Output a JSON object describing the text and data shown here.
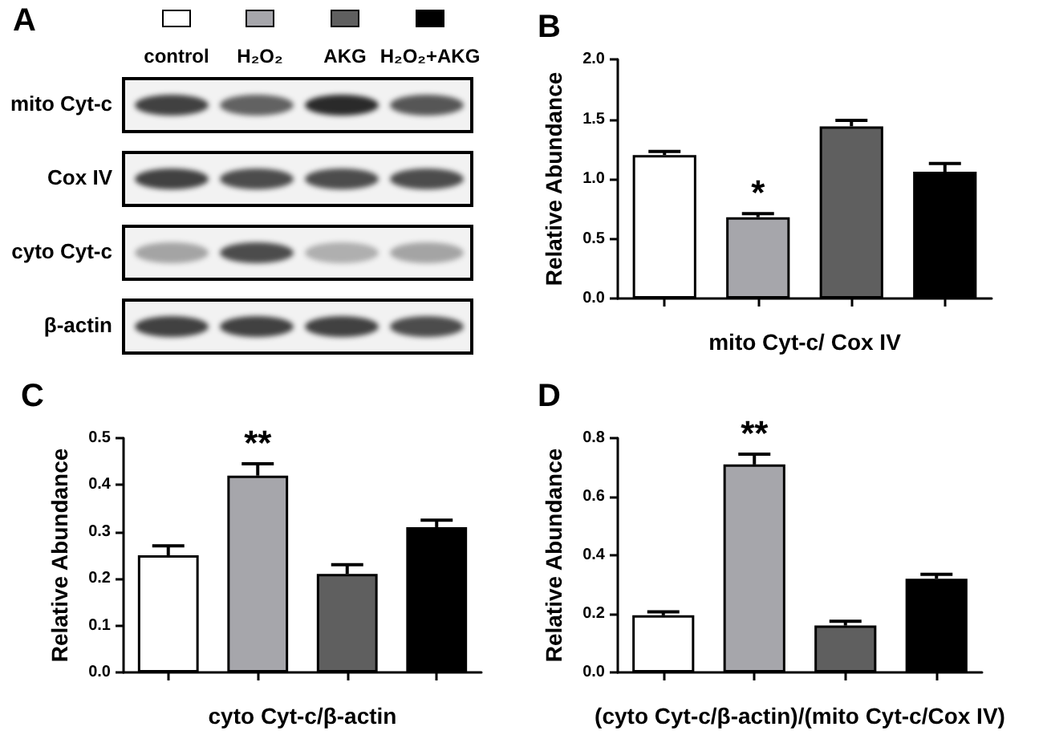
{
  "chart_data": [
    {
      "type": "other",
      "title": "A",
      "annotations": [
        "control",
        "H₂O₂",
        "AKG",
        "H₂O₂+AKG",
        "mito Cyt-c",
        "Cox IV",
        "cyto Cyt-c",
        "β-actin"
      ]
    },
    {
      "type": "bar",
      "title": "B",
      "categories": [
        null,
        null,
        null,
        null
      ],
      "values": [
        1.2,
        0.68,
        1.44,
        1.06
      ],
      "errors": [
        [
          1.2,
          1.23
        ],
        [
          0.68,
          0.71
        ],
        [
          1.44,
          1.49
        ],
        [
          1.06,
          1.13
        ]
      ],
      "value_labels": [
        null,
        "*",
        null,
        null
      ],
      "colors": [
        "#ffffff",
        "#a6a6ab",
        "#5f5f5f",
        "#000000"
      ],
      "ylim": [
        0,
        2
      ],
      "yticks": [
        {
          "value": 0,
          "label": "0.0"
        },
        {
          "value": 0.5,
          "label": "0.5"
        },
        {
          "value": 1,
          "label": "1.0"
        },
        {
          "value": 1.5,
          "label": "1.5"
        },
        {
          "value": 2,
          "label": "2.0"
        }
      ],
      "ylabel": "Relative Abundance",
      "xlabel": "mito Cyt-c/ Cox IV"
    },
    {
      "type": "bar",
      "title": "C",
      "categories": [
        null,
        null,
        null,
        null
      ],
      "values": [
        0.25,
        0.42,
        0.21,
        0.31
      ],
      "errors": [
        [
          0.25,
          0.27
        ],
        [
          0.42,
          0.445
        ],
        [
          0.21,
          0.23
        ],
        [
          0.31,
          0.325
        ]
      ],
      "value_labels": [
        null,
        "**",
        null,
        null
      ],
      "colors": [
        "#ffffff",
        "#a6a6ab",
        "#5f5f5f",
        "#000000"
      ],
      "ylim": [
        0,
        0.5
      ],
      "yticks": [
        {
          "value": 0,
          "label": "0.0"
        },
        0.1,
        0.2,
        0.3,
        0.4,
        0.5
      ],
      "ylabel": "Relative Abundance",
      "xlabel": "cyto Cyt-c/β-actin"
    },
    {
      "type": "bar",
      "title": "D",
      "categories": [
        null,
        null,
        null,
        null
      ],
      "values": [
        0.195,
        0.71,
        0.16,
        0.32
      ],
      "errors": [
        [
          0.195,
          0.207
        ],
        [
          0.71,
          0.745
        ],
        [
          0.16,
          0.175
        ],
        [
          0.32,
          0.335
        ]
      ],
      "value_labels": [
        null,
        "**",
        null,
        null
      ],
      "colors": [
        "#ffffff",
        "#a6a6ab",
        "#5f5f5f",
        "#000000"
      ],
      "ylim": [
        0,
        0.8
      ],
      "yticks": [
        {
          "value": 0,
          "label": "0.0"
        },
        0.2,
        0.4,
        0.6,
        0.8
      ],
      "ylabel": "Relative Abundance",
      "xlabel": "(cyto Cyt-c/β-actin)/(mito Cyt-c/Cox IV)"
    }
  ]
}
